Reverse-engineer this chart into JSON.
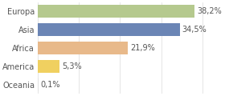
{
  "categories": [
    "Europa",
    "Asia",
    "Africa",
    "America",
    "Oceania"
  ],
  "values": [
    38.2,
    34.5,
    21.9,
    5.3,
    0.1
  ],
  "labels": [
    "38,2%",
    "34,5%",
    "21,9%",
    "5,3%",
    "0,1%"
  ],
  "bar_colors": [
    "#b5c98e",
    "#6b85b5",
    "#e8b98a",
    "#f0d060",
    "#e0e0e0"
  ],
  "xlim": [
    0,
    44
  ],
  "background_color": "#ffffff",
  "bar_height": 0.72,
  "label_fontsize": 7.0,
  "tick_fontsize": 7.0,
  "grid_color": "#e0e0e0",
  "text_color": "#555555",
  "grid_xticks": [
    0,
    10,
    20,
    30,
    40
  ]
}
